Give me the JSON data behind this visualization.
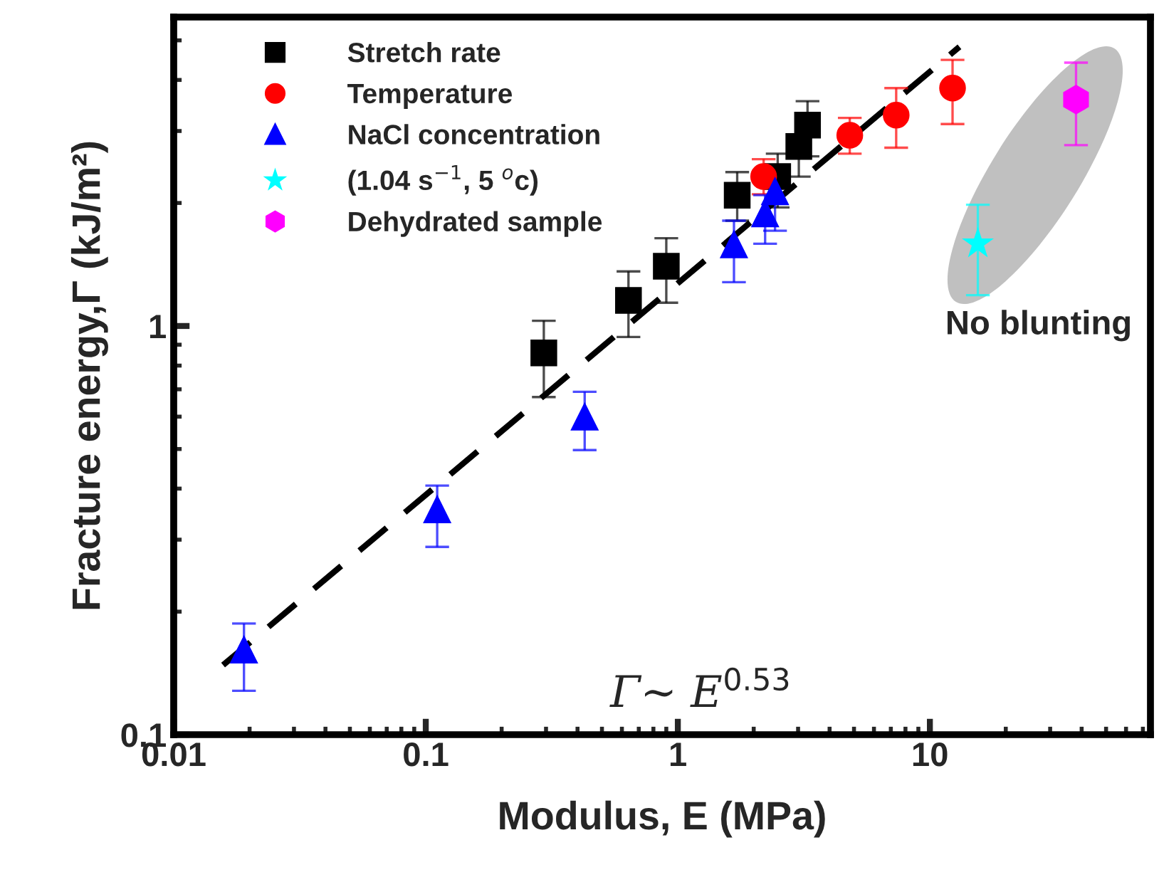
{
  "chart_data": {
    "type": "scatter",
    "xlabel": "Modulus, E (MPa)",
    "ylabel": "Fracture energy,Γ (kJ/m²)",
    "log": "xy",
    "xlim": [
      0.01,
      75
    ],
    "ylim": [
      0.1,
      5.7
    ],
    "xticks": [
      0.01,
      0.1,
      1,
      10
    ],
    "yticks": [
      0.1,
      1
    ],
    "grid": false,
    "legend": "top left",
    "annotations": [
      "No blunting",
      "Γ~ E$^{0.53}$"
    ],
    "series": [
      {
        "name": "Stretch rate",
        "color": "#000000",
        "marker": "square",
        "x": [
          0.294,
          0.637,
          0.9,
          1.72,
          2.49,
          3.02,
          3.27
        ],
        "values": [
          0.859,
          1.155,
          1.4,
          2.09,
          2.32,
          2.75,
          3.1
        ],
        "errors": [
          [
            0.67,
            1.03
          ],
          [
            0.94,
            1.36
          ],
          [
            1.14,
            1.64
          ],
          [
            1.81,
            2.38
          ],
          [
            1.95,
            2.64
          ],
          [
            2.32,
            2.75
          ],
          [
            2.6,
            3.55
          ]
        ]
      },
      {
        "name": "Temperature",
        "color": "#ff0000",
        "marker": "circle",
        "x": [
          2.19,
          4.81,
          7.35,
          12.3
        ],
        "values": [
          2.32,
          2.93,
          3.28,
          3.82
        ],
        "errors": [
          [
            2.1,
            2.56
          ],
          [
            2.64,
            3.23
          ],
          [
            2.73,
            3.82
          ],
          [
            3.12,
            4.48
          ]
        ]
      },
      {
        "name": "NaCl concentration",
        "color": "#0000ff",
        "marker": "triangle",
        "x": [
          0.019,
          0.111,
          0.427,
          1.67,
          2.22,
          2.43
        ],
        "values": [
          0.161,
          0.355,
          0.598,
          1.58,
          1.88,
          2.13
        ],
        "errors": [
          [
            0.128,
            0.187
          ],
          [
            0.288,
            0.407
          ],
          [
            0.497,
            0.69
          ],
          [
            1.28,
            1.81
          ],
          [
            1.59,
            2.09
          ],
          [
            1.71,
            2.44
          ]
        ]
      },
      {
        "name": "(1.04 s$^{−1}$, 5 $^{o}$c)",
        "color": "#00ffff",
        "marker": "star",
        "x": [
          15.5
        ],
        "values": [
          1.59
        ],
        "errors": [
          [
            1.19,
            1.98
          ]
        ]
      },
      {
        "name": "Dehydrated sample",
        "color": "#ff00ff",
        "x": [
          38
        ],
        "values": [
          3.58
        ],
        "errors": [
          [
            2.77,
            4.41
          ]
        ]
      },
      {
        "type": "line",
        "color": "#000000",
        "line_style": "dashed",
        "marker": "none",
        "x": [
          0.0157,
          13.1
        ],
        "values": [
          0.148,
          4.82
        ]
      }
    ]
  }
}
